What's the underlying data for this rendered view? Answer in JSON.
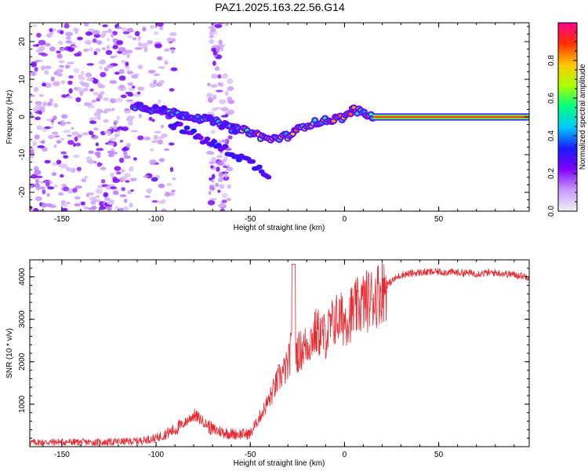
{
  "title": "PAZ1.2025.163.22.56.G14",
  "chart_data": [
    {
      "type": "heatmap",
      "xlabel": "Height of straight line (km)",
      "ylabel": "Frequency (Hz)",
      "xlim": [
        -167,
        98
      ],
      "ylim": [
        -25,
        25
      ],
      "xticks": [
        -150,
        -100,
        -50,
        0,
        50
      ],
      "yticks": [
        -20,
        -10,
        0,
        10,
        20
      ],
      "colorbar": {
        "label": "Normalized spectral amplitude",
        "range": [
          0,
          1
        ],
        "ticks": [
          "0.0",
          "0.2",
          "0.4",
          "0.6",
          "0.8"
        ],
        "tick_values": [
          0,
          0.2,
          0.4,
          0.6,
          0.8
        ],
        "colors": [
          "#f2f2f2",
          "#c89bff",
          "#7f00ff",
          "#1a1aff",
          "#00c8ff",
          "#00ff80",
          "#aaff00",
          "#ffc800",
          "#ff3000",
          "#ff0090"
        ]
      },
      "ridge": [
        {
          "x": -110,
          "y": 3
        },
        {
          "x": -100,
          "y": 2
        },
        {
          "x": -90,
          "y": 1
        },
        {
          "x": -80,
          "y": 0
        },
        {
          "x": -70,
          "y": -1
        },
        {
          "x": -60,
          "y": -3
        },
        {
          "x": -50,
          "y": -4
        },
        {
          "x": -40,
          "y": -6
        },
        {
          "x": -30,
          "y": -5
        },
        {
          "x": -20,
          "y": -2
        },
        {
          "x": -10,
          "y": -1
        },
        {
          "x": 0,
          "y": 0
        },
        {
          "x": 5,
          "y": 2
        },
        {
          "x": 15,
          "y": 0
        },
        {
          "x": 98,
          "y": 0
        }
      ],
      "secondary_ridge": [
        {
          "x": -90,
          "y": -2
        },
        {
          "x": -75,
          "y": -6
        },
        {
          "x": -62,
          "y": -9
        },
        {
          "x": -50,
          "y": -12
        },
        {
          "x": -42,
          "y": -15
        }
      ]
    },
    {
      "type": "line",
      "xlabel": "Height of straight line (km)",
      "ylabel": "SNR (10 * v/v)",
      "xlim": [
        -167,
        98
      ],
      "ylim": [
        0,
        4400
      ],
      "xticks": [
        -150,
        -100,
        -50,
        0,
        50
      ],
      "yticks": [
        1000,
        2000,
        3000,
        4000
      ],
      "color": "#e8282e",
      "series": [
        {
          "x": [
            -167,
            -150,
            -130,
            -110,
            -100,
            -90,
            -85,
            -80,
            -75,
            -70,
            -60,
            -50,
            -45,
            -40,
            -35,
            -30,
            -27,
            -25,
            -20,
            -15,
            -10,
            -5,
            0,
            5,
            10,
            15,
            20,
            25,
            30,
            40,
            50,
            60,
            70,
            80,
            90,
            98
          ],
          "y": [
            100,
            110,
            100,
            130,
            200,
            400,
            550,
            750,
            600,
            400,
            300,
            300,
            700,
            1100,
            1600,
            1900,
            2600,
            2200,
            2400,
            2700,
            2600,
            3000,
            3000,
            3200,
            3400,
            3500,
            3700,
            3900,
            4050,
            4100,
            4120,
            4100,
            4080,
            4100,
            4050,
            4000
          ]
        }
      ]
    }
  ]
}
